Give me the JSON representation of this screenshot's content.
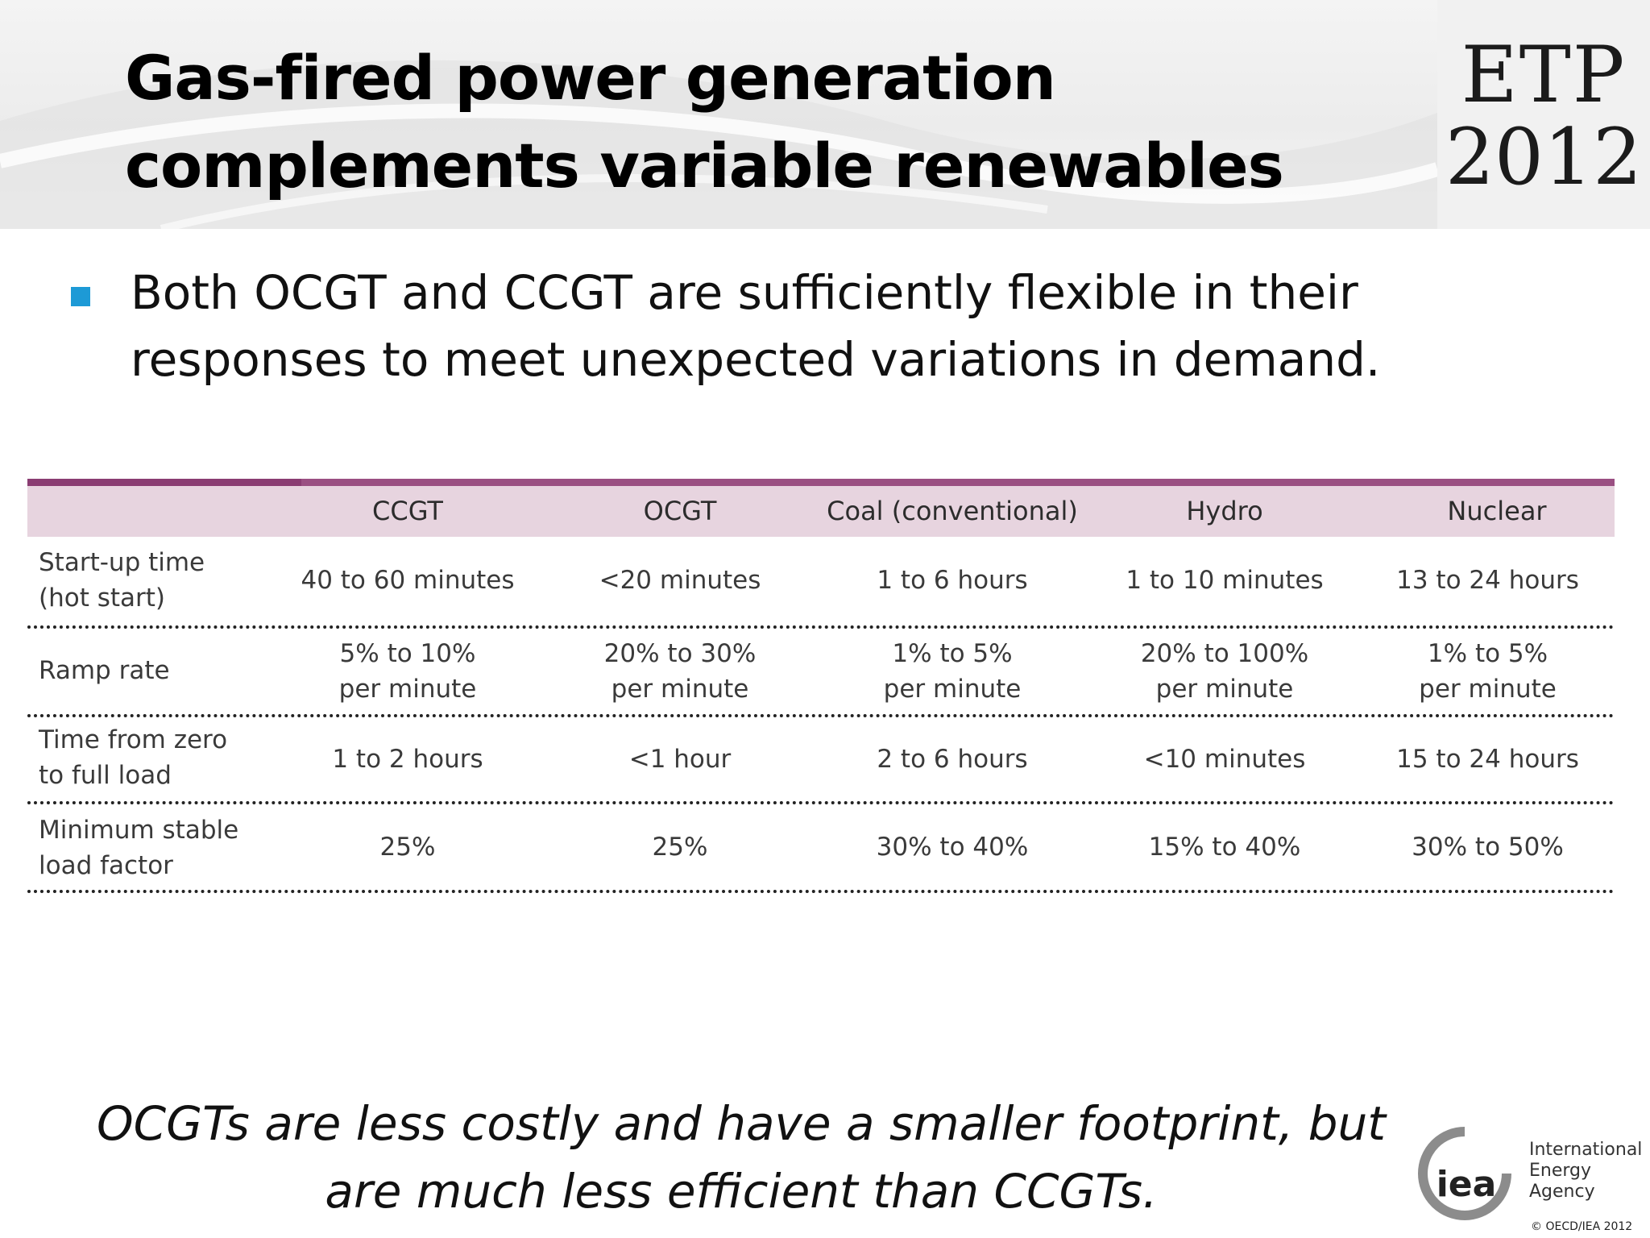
{
  "header": {
    "title": "Gas-fired power generation complements variable renewables",
    "badge_line1": "ETP",
    "badge_line2": "2012"
  },
  "bullet": {
    "text": "Both OCGT and CCGT are sufficiently flexible in their responses to meet unexpected variations in demand."
  },
  "table": {
    "columns": [
      "CCGT",
      "OCGT",
      "Coal (conventional)",
      "Hydro",
      "Nuclear"
    ],
    "rows": [
      {
        "label": [
          "Start-up time",
          "(hot start)"
        ],
        "cells": [
          [
            "40 to 60 minutes"
          ],
          [
            "<20 minutes"
          ],
          [
            "1 to 6 hours"
          ],
          [
            "1 to 10 minutes"
          ],
          [
            "13 to 24 hours"
          ]
        ]
      },
      {
        "label": [
          "Ramp rate"
        ],
        "cells": [
          [
            "5% to 10%",
            "per minute"
          ],
          [
            "20% to 30%",
            "per minute"
          ],
          [
            "1% to 5%",
            "per minute"
          ],
          [
            "20% to 100%",
            "per minute"
          ],
          [
            "1% to 5%",
            "per minute"
          ]
        ]
      },
      {
        "label": [
          "Time from zero",
          "to full load"
        ],
        "cells": [
          [
            "1 to 2 hours"
          ],
          [
            "<1 hour"
          ],
          [
            "2 to 6 hours"
          ],
          [
            "<10 minutes"
          ],
          [
            "15 to 24 hours"
          ]
        ]
      },
      {
        "label": [
          "Minimum stable",
          "load factor"
        ],
        "cells": [
          [
            "25%"
          ],
          [
            "25%"
          ],
          [
            "30% to 40%"
          ],
          [
            "15% to 40%"
          ],
          [
            "30% to 50%"
          ]
        ]
      }
    ]
  },
  "note": {
    "line1": "OCGTs are less costly and have a smaller footprint, but",
    "line2": "are much less efficient than CCGTs."
  },
  "footer": {
    "logo_text": "iea",
    "org_line1": "International",
    "org_line2": "Energy Agency",
    "copyright": "© OECD/IEA 2012"
  },
  "colors": {
    "table_rule": "#9a4f82",
    "table_header_bg": "#e7d4df",
    "bullet": "#1d9ad6"
  }
}
